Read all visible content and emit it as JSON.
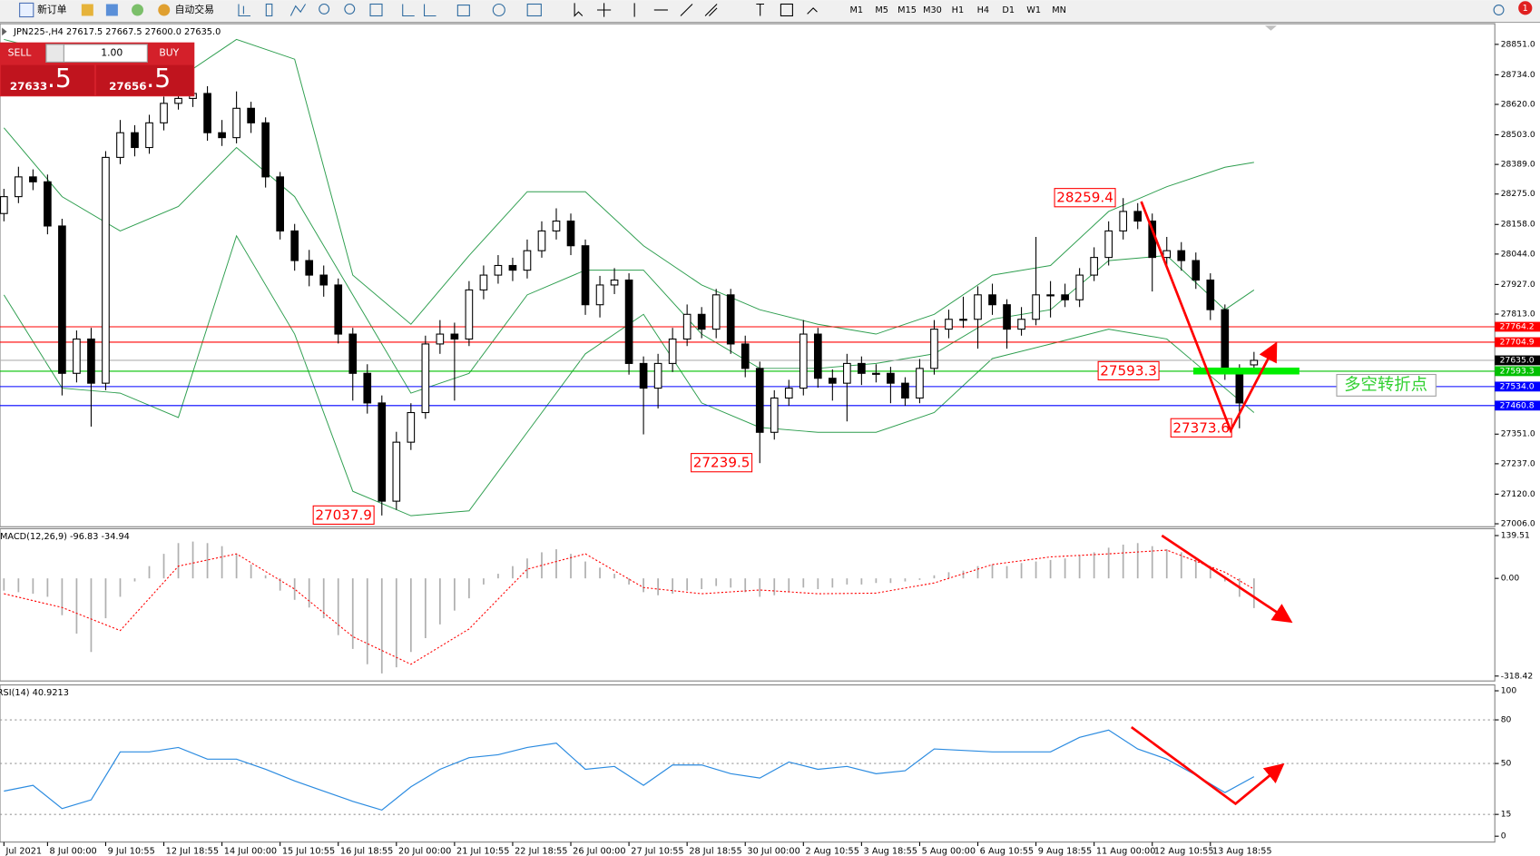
{
  "toolbar": {
    "new_order": "新订单",
    "auto_trade": "自动交易",
    "timeframes": [
      "M1",
      "M5",
      "M15",
      "M30",
      "H1",
      "H4",
      "D1",
      "W1",
      "MN"
    ],
    "notifications": 1
  },
  "trade_panel": {
    "sell": "SELL",
    "buy": "BUY",
    "lots": "1.00",
    "bid_main": "27633",
    "bid_frac": ".5",
    "ask_main": "27656",
    "ask_frac": ".5"
  },
  "chart_data": [
    {
      "type": "candlestick",
      "title": "JPN225-,H4 27617.5 27667.5 27600.0 27635.0",
      "callout": "多空转折点",
      "ylim": [
        27006,
        28851
      ],
      "yticks": [
        {
          "value": 28851,
          "label": "28851.0"
        },
        {
          "value": 28734,
          "label": "28734.0"
        },
        {
          "value": 28620,
          "label": "28620.0"
        },
        {
          "value": 28503,
          "label": "28503.0"
        },
        {
          "value": 28389,
          "label": "28389.0"
        },
        {
          "value": 28275,
          "label": "28275.0"
        },
        {
          "value": 28158,
          "label": "28158.0"
        },
        {
          "value": 28044,
          "label": "28044.0"
        },
        {
          "value": 27927,
          "label": "27927.0"
        },
        {
          "value": 27813,
          "label": "27813.0"
        },
        {
          "value": 27351,
          "label": "27351.0"
        },
        {
          "value": 27237,
          "label": "27237.0"
        },
        {
          "value": 27120,
          "label": "27120.0"
        },
        {
          "value": 27006,
          "label": "27006.0"
        }
      ],
      "xticks": [
        {
          "value": 0,
          "label": "Jul 2021"
        },
        {
          "value": 3,
          "label": "8 Jul 00:00"
        },
        {
          "value": 7,
          "label": "9 Jul 10:55"
        },
        {
          "value": 11,
          "label": "12 Jul 18:55"
        },
        {
          "value": 15,
          "label": "14 Jul 00:00"
        },
        {
          "value": 19,
          "label": "15 Jul 10:55"
        },
        {
          "value": 23,
          "label": "16 Jul 18:55"
        },
        {
          "value": 27,
          "label": "20 Jul 00:00"
        },
        {
          "value": 31,
          "label": "21 Jul 10:55"
        },
        {
          "value": 35,
          "label": "22 Jul 18:55"
        },
        {
          "value": 39,
          "label": "26 Jul 00:00"
        },
        {
          "value": 43,
          "label": "27 Jul 10:55"
        },
        {
          "value": 47,
          "label": "28 Jul 18:55"
        },
        {
          "value": 51,
          "label": "30 Jul 00:00"
        },
        {
          "value": 55,
          "label": "2 Aug 10:55"
        },
        {
          "value": 59,
          "label": "3 Aug 18:55"
        },
        {
          "value": 63,
          "label": "5 Aug 00:00"
        },
        {
          "value": 67,
          "label": "6 Aug 10:55"
        },
        {
          "value": 71,
          "label": "9 Aug 18:55"
        },
        {
          "value": 75,
          "label": "11 Aug 00:00"
        },
        {
          "value": 79,
          "label": "12 Aug 10:55"
        },
        {
          "value": 83,
          "label": "13 Aug 18:55"
        }
      ],
      "open": [
        28200,
        28265,
        28341,
        28322,
        28152,
        27585,
        27717,
        27547,
        28416,
        28511,
        28454,
        28549,
        28624,
        28643,
        28662,
        28511,
        28492,
        28605,
        28549,
        28341,
        28133,
        28019,
        27963,
        27925,
        27736,
        27585,
        27471,
        27093,
        27320,
        27434,
        27698,
        27736,
        27717,
        27906,
        27963,
        28000,
        27982,
        28057,
        28133,
        28171,
        28076,
        27849,
        27925,
        27944,
        27623,
        27528,
        27623,
        27717,
        27812,
        27755,
        27887,
        27698,
        27604,
        27358,
        27490,
        27528,
        27736,
        27566,
        27547,
        27623,
        27585,
        27585,
        27547,
        27490,
        27604,
        27755,
        27793,
        27793,
        27887,
        27849,
        27755,
        27793,
        27887,
        27887,
        27868,
        27963,
        28031,
        28133,
        28208,
        28171,
        28031,
        28057,
        28019,
        27944,
        27830,
        27585,
        27617.5
      ],
      "high": [
        28295,
        28380,
        28370,
        28350,
        28180,
        27750,
        27760,
        28440,
        28560,
        28540,
        28580,
        28650,
        28680,
        28690,
        28690,
        28560,
        28670,
        28630,
        28570,
        28360,
        28160,
        28060,
        28000,
        27950,
        27760,
        27620,
        27500,
        27360,
        27470,
        27730,
        27790,
        27780,
        27940,
        28000,
        28040,
        28030,
        28100,
        28170,
        28220,
        28200,
        28100,
        27960,
        27990,
        27970,
        27650,
        27660,
        27760,
        27850,
        27840,
        27910,
        27910,
        27730,
        27630,
        27520,
        27560,
        27790,
        27760,
        27600,
        27660,
        27650,
        27620,
        27610,
        27570,
        27640,
        27790,
        27830,
        27880,
        27920,
        27930,
        27870,
        27840,
        28110,
        27940,
        27930,
        27990,
        28070,
        28170,
        28259.4,
        28240,
        28200,
        28110,
        28090,
        28050,
        27970,
        27850,
        27620,
        27667.5
      ],
      "low": [
        28170,
        28240,
        28290,
        28120,
        27500,
        27550,
        27380,
        27520,
        28390,
        28420,
        28430,
        28520,
        28600,
        28610,
        28480,
        28460,
        28470,
        28510,
        28300,
        28100,
        27980,
        27920,
        27880,
        27700,
        27480,
        27430,
        27037.9,
        27060,
        27290,
        27410,
        27660,
        27480,
        27690,
        27870,
        27930,
        27940,
        27950,
        28030,
        28100,
        28040,
        27810,
        27800,
        27890,
        27580,
        27350,
        27450,
        27590,
        27690,
        27720,
        27720,
        27660,
        27570,
        27239.5,
        27330,
        27460,
        27500,
        27530,
        27480,
        27400,
        27540,
        27550,
        27470,
        27460,
        27470,
        27580,
        27720,
        27760,
        27680,
        27810,
        27680,
        27730,
        27770,
        27800,
        27840,
        27840,
        27940,
        28000,
        28100,
        28140,
        27900,
        27990,
        27980,
        27910,
        27790,
        27560,
        27373.6,
        27600
      ],
      "close": [
        28265,
        28341,
        28322,
        28152,
        27585,
        27717,
        27547,
        28416,
        28511,
        28454,
        28549,
        28624,
        28643,
        28662,
        28511,
        28492,
        28605,
        28549,
        28341,
        28133,
        28019,
        27963,
        27925,
        27736,
        27585,
        27471,
        27093,
        27320,
        27434,
        27698,
        27736,
        27717,
        27906,
        27963,
        28000,
        27982,
        28057,
        28133,
        28171,
        28076,
        27849,
        27925,
        27944,
        27623,
        27528,
        27623,
        27717,
        27812,
        27755,
        27887,
        27698,
        27604,
        27358,
        27490,
        27528,
        27736,
        27566,
        27547,
        27623,
        27585,
        27585,
        27547,
        27490,
        27604,
        27755,
        27793,
        27793,
        27887,
        27849,
        27755,
        27793,
        27887,
        27887,
        27868,
        27963,
        28031,
        28133,
        28208,
        28171,
        28031,
        28057,
        28019,
        27944,
        27830,
        27585,
        27471,
        27635
      ],
      "bands": {
        "color": "#2e9e4f",
        "x": [
          0,
          4,
          8,
          12,
          16,
          20,
          24,
          28,
          32,
          36,
          40,
          44,
          48,
          52,
          56,
          60,
          64,
          68,
          72,
          76,
          80,
          84,
          86
        ],
        "upper": [
          28870,
          28813,
          28757,
          28719,
          28870,
          28794,
          27963,
          27774,
          28038,
          28284,
          28284,
          28076,
          27925,
          27830,
          27774,
          27736,
          27812,
          27963,
          28000,
          28208,
          28303,
          28378,
          28397
        ],
        "middle": [
          28530,
          28265,
          28133,
          28227,
          28454,
          28265,
          27887,
          27509,
          27585,
          27887,
          27982,
          27982,
          27736,
          27604,
          27604,
          27623,
          27660,
          27793,
          27830,
          28019,
          28038,
          27830,
          27906
        ],
        "lower": [
          27887,
          27528,
          27509,
          27415,
          28114,
          27736,
          27131,
          27037,
          27056,
          27358,
          27660,
          27812,
          27471,
          27377,
          27358,
          27358,
          27434,
          27642,
          27698,
          27755,
          27717,
          27528,
          27434
        ]
      },
      "levels": [
        {
          "value": 27764.2,
          "color": "#ff0000"
        },
        {
          "value": 27704.9,
          "color": "#ff0000"
        },
        {
          "value": 27635.0,
          "label": "27635.0",
          "color": "#000000"
        },
        {
          "value": 27593.3,
          "color": "#00c000"
        },
        {
          "value": 27534.0,
          "label": "27534.0",
          "color": "#0000ff"
        },
        {
          "value": 27460.8,
          "color": "#0000ff"
        }
      ],
      "annotations": [
        {
          "value": 28259.4,
          "x": 77
        },
        {
          "value": 27593.3,
          "x": 80
        },
        {
          "value": 27373.6,
          "x": 85
        },
        {
          "value": 27239.5,
          "x": 52
        },
        {
          "value": 27037.9,
          "x": 26
        }
      ]
    },
    {
      "type": "macd",
      "title": "MACD(12,26,9) -96.83 -34.94",
      "ylim": [
        -318.42,
        139.51
      ],
      "yticks": [
        139.51,
        {
          "value": 0,
          "label": "0.00"
        },
        -318.42
      ],
      "histogram": {
        "color": "#b0b0b0",
        "values": [
          -40,
          -45,
          -50,
          -60,
          -120,
          -180,
          -240,
          -130,
          -60,
          -10,
          40,
          80,
          115,
          120,
          115,
          105,
          80,
          45,
          10,
          -40,
          -70,
          -95,
          -130,
          -185,
          -230,
          -280,
          -310,
          -290,
          -240,
          -195,
          -150,
          -105,
          -65,
          -20,
          15,
          40,
          65,
          85,
          95,
          80,
          55,
          35,
          15,
          -20,
          -45,
          -55,
          -50,
          -40,
          -35,
          -25,
          -30,
          -45,
          -60,
          -55,
          -45,
          -30,
          -35,
          -30,
          -20,
          -20,
          -15,
          -15,
          -10,
          -5,
          10,
          20,
          25,
          40,
          45,
          40,
          50,
          55,
          60,
          65,
          75,
          85,
          100,
          110,
          115,
          105,
          95,
          85,
          65,
          40,
          -10,
          -60,
          -96.83
        ]
      },
      "signal": {
        "color": "#ff0000",
        "x": [
          0,
          4,
          8,
          12,
          16,
          20,
          24,
          28,
          32,
          36,
          40,
          44,
          48,
          52,
          56,
          60,
          64,
          68,
          72,
          76,
          80,
          84,
          86
        ],
        "values": [
          -50,
          -95,
          -170,
          40,
          80,
          -35,
          -190,
          -280,
          -165,
          30,
          80,
          -30,
          -50,
          -38,
          -50,
          -48,
          -15,
          45,
          70,
          80,
          92,
          20,
          -34.94
        ]
      }
    },
    {
      "type": "line",
      "title": "RSI(14) 40.9213",
      "ylim": [
        0,
        100
      ],
      "yticks": [
        100,
        80,
        50,
        15,
        0
      ],
      "grid": true,
      "color": "#2b8be0",
      "x": [
        0,
        2,
        4,
        6,
        8,
        10,
        12,
        14,
        16,
        18,
        20,
        22,
        24,
        26,
        28,
        30,
        32,
        34,
        36,
        38,
        40,
        42,
        44,
        46,
        48,
        50,
        52,
        54,
        56,
        58,
        60,
        62,
        64,
        66,
        68,
        70,
        72,
        74,
        76,
        78,
        80,
        82,
        84,
        86
      ],
      "values": [
        31,
        35,
        19,
        25,
        58,
        58,
        61,
        53,
        53,
        46,
        38,
        31,
        24,
        18,
        34,
        46,
        54,
        56,
        61,
        64,
        46,
        48,
        35,
        49,
        49,
        43,
        40,
        51,
        46,
        48,
        43,
        45,
        60,
        59,
        58,
        58,
        58,
        68,
        73,
        60,
        53,
        42,
        30,
        40.9213
      ]
    }
  ]
}
